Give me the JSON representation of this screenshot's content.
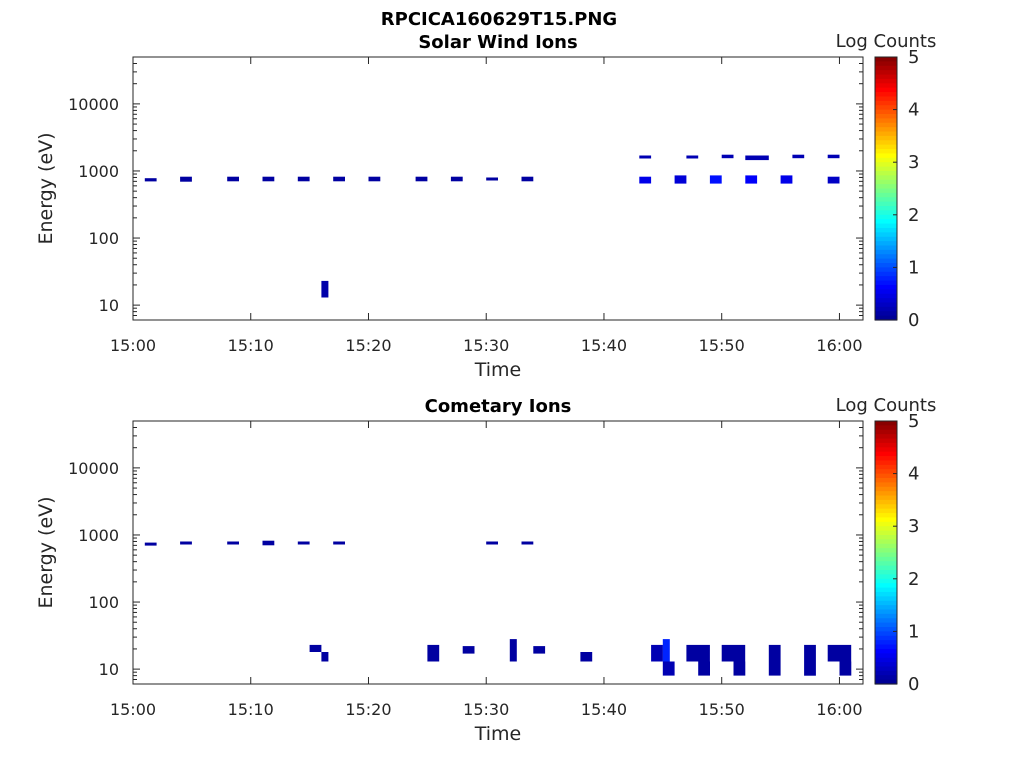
{
  "figure_title": "RPCICA160629T15.PNG",
  "colormap": [
    "#00008f",
    "#0000ff",
    "#0080ff",
    "#00ffff",
    "#80ff80",
    "#ffff00",
    "#ff8000",
    "#ff0000",
    "#800000"
  ],
  "chart_data": [
    {
      "type": "heatmap",
      "title": "Solar Wind Ions",
      "xlabel": "Time",
      "ylabel": "Energy (eV)",
      "xlim": [
        "15:00",
        "16:02"
      ],
      "ylim": [
        6,
        50000
      ],
      "yscale": "log",
      "xticks": [
        "15:00",
        "15:10",
        "15:20",
        "15:30",
        "15:40",
        "15:50",
        "16:00"
      ],
      "yticks": [
        10,
        100,
        1000,
        10000
      ],
      "colorbar": {
        "label": "Log Counts",
        "range": [
          0,
          5
        ],
        "ticks": [
          0,
          1,
          2,
          3,
          4,
          5
        ]
      },
      "cells": [
        {
          "t0": "15:01",
          "t1": "15:02",
          "e0": 700,
          "e1": 780,
          "v": 0.1
        },
        {
          "t0": "15:04",
          "t1": "15:05",
          "e0": 690,
          "e1": 820,
          "v": 0.1
        },
        {
          "t0": "15:08",
          "t1": "15:09",
          "e0": 700,
          "e1": 820,
          "v": 0.1
        },
        {
          "t0": "15:11",
          "t1": "15:12",
          "e0": 700,
          "e1": 820,
          "v": 0.1
        },
        {
          "t0": "15:14",
          "t1": "15:15",
          "e0": 700,
          "e1": 820,
          "v": 0.1
        },
        {
          "t0": "15:16",
          "t1": "15:16",
          "e0": 13,
          "e1": 23,
          "v": 0.15
        },
        {
          "t0": "15:17",
          "t1": "15:18",
          "e0": 700,
          "e1": 820,
          "v": 0.1
        },
        {
          "t0": "15:20",
          "t1": "15:21",
          "e0": 700,
          "e1": 820,
          "v": 0.1
        },
        {
          "t0": "15:24",
          "t1": "15:25",
          "e0": 700,
          "e1": 820,
          "v": 0.1
        },
        {
          "t0": "15:27",
          "t1": "15:28",
          "e0": 700,
          "e1": 820,
          "v": 0.1
        },
        {
          "t0": "15:30",
          "t1": "15:31",
          "e0": 760,
          "e1": 800,
          "v": 0.1
        },
        {
          "t0": "15:33",
          "t1": "15:34",
          "e0": 700,
          "e1": 820,
          "v": 0.1
        },
        {
          "t0": "15:43",
          "t1": "15:44",
          "e0": 1550,
          "e1": 1700,
          "v": 0.2
        },
        {
          "t0": "15:43",
          "t1": "15:44",
          "e0": 650,
          "e1": 820,
          "v": 0.5
        },
        {
          "t0": "15:46",
          "t1": "15:47",
          "e0": 650,
          "e1": 860,
          "v": 0.4
        },
        {
          "t0": "15:47",
          "t1": "15:48",
          "e0": 1550,
          "e1": 1700,
          "v": 0.2
        },
        {
          "t0": "15:49",
          "t1": "15:50",
          "e0": 650,
          "e1": 860,
          "v": 0.7
        },
        {
          "t0": "15:50",
          "t1": "15:51",
          "e0": 1550,
          "e1": 1750,
          "v": 0.2
        },
        {
          "t0": "15:52",
          "t1": "15:54",
          "e0": 1450,
          "e1": 1700,
          "v": 0.2
        },
        {
          "t0": "15:52",
          "t1": "15:53",
          "e0": 650,
          "e1": 860,
          "v": 0.6
        },
        {
          "t0": "15:55",
          "t1": "15:56",
          "e0": 650,
          "e1": 860,
          "v": 0.5
        },
        {
          "t0": "15:56",
          "t1": "15:57",
          "e0": 1550,
          "e1": 1750,
          "v": 0.2
        },
        {
          "t0": "15:59",
          "t1": "16:00",
          "e0": 650,
          "e1": 820,
          "v": 0.3
        },
        {
          "t0": "15:59",
          "t1": "16:00",
          "e0": 1550,
          "e1": 1750,
          "v": 0.2
        }
      ]
    },
    {
      "type": "heatmap",
      "title": "Cometary Ions",
      "xlabel": "Time",
      "ylabel": "Energy (eV)",
      "xlim": [
        "15:00",
        "16:02"
      ],
      "ylim": [
        6,
        50000
      ],
      "yscale": "log",
      "xticks": [
        "15:00",
        "15:10",
        "15:20",
        "15:30",
        "15:40",
        "15:50",
        "16:00"
      ],
      "yticks": [
        10,
        100,
        1000,
        10000
      ],
      "colorbar": {
        "label": "Log Counts",
        "range": [
          0,
          5
        ],
        "ticks": [
          0,
          1,
          2,
          3,
          4,
          5
        ]
      },
      "cells": [
        {
          "t0": "15:01",
          "t1": "15:02",
          "e0": 710,
          "e1": 770,
          "v": 0.1
        },
        {
          "t0": "15:04",
          "t1": "15:05",
          "e0": 750,
          "e1": 800,
          "v": 0.1
        },
        {
          "t0": "15:08",
          "t1": "15:09",
          "e0": 750,
          "e1": 800,
          "v": 0.1
        },
        {
          "t0": "15:11",
          "t1": "15:12",
          "e0": 700,
          "e1": 820,
          "v": 0.1
        },
        {
          "t0": "15:14",
          "t1": "15:15",
          "e0": 750,
          "e1": 800,
          "v": 0.1
        },
        {
          "t0": "15:17",
          "t1": "15:18",
          "e0": 750,
          "e1": 800,
          "v": 0.1
        },
        {
          "t0": "15:30",
          "t1": "15:31",
          "e0": 750,
          "e1": 800,
          "v": 0.1
        },
        {
          "t0": "15:33",
          "t1": "15:34",
          "e0": 750,
          "e1": 800,
          "v": 0.1
        },
        {
          "t0": "15:15",
          "t1": "15:16",
          "e0": 18,
          "e1": 23,
          "v": 0.1
        },
        {
          "t0": "15:16",
          "t1": "15:16",
          "e0": 13,
          "e1": 18,
          "v": 0.1
        },
        {
          "t0": "15:25",
          "t1": "15:26",
          "e0": 18,
          "e1": 23,
          "v": 0.1
        },
        {
          "t0": "15:25",
          "t1": "15:26",
          "e0": 13,
          "e1": 18,
          "v": 0.1
        },
        {
          "t0": "15:28",
          "t1": "15:29",
          "e0": 17,
          "e1": 22,
          "v": 0.1
        },
        {
          "t0": "15:32",
          "t1": "15:32",
          "e0": 13,
          "e1": 28,
          "v": 0.1
        },
        {
          "t0": "15:34",
          "t1": "15:35",
          "e0": 17,
          "e1": 22,
          "v": 0.1
        },
        {
          "t0": "15:38",
          "t1": "15:39",
          "e0": 13,
          "e1": 18,
          "v": 0.1
        },
        {
          "t0": "15:44",
          "t1": "15:45",
          "e0": 13,
          "e1": 23,
          "v": 0.2
        },
        {
          "t0": "15:45",
          "t1": "15:45",
          "e0": 13,
          "e1": 28,
          "v": 0.8
        },
        {
          "t0": "15:45",
          "t1": "15:46",
          "e0": 8,
          "e1": 13,
          "v": 0.2
        },
        {
          "t0": "15:47",
          "t1": "15:49",
          "e0": 13,
          "e1": 23,
          "v": 0.1
        },
        {
          "t0": "15:48",
          "t1": "15:49",
          "e0": 8,
          "e1": 13,
          "v": 0.1
        },
        {
          "t0": "15:50",
          "t1": "15:52",
          "e0": 13,
          "e1": 23,
          "v": 0.1
        },
        {
          "t0": "15:51",
          "t1": "15:52",
          "e0": 8,
          "e1": 13,
          "v": 0.1
        },
        {
          "t0": "15:54",
          "t1": "15:55",
          "e0": 13,
          "e1": 23,
          "v": 0.1
        },
        {
          "t0": "15:54",
          "t1": "15:55",
          "e0": 8,
          "e1": 13,
          "v": 0.1
        },
        {
          "t0": "15:57",
          "t1": "15:58",
          "e0": 8,
          "e1": 23,
          "v": 0.1
        },
        {
          "t0": "15:59",
          "t1": "16:01",
          "e0": 13,
          "e1": 23,
          "v": 0.1
        },
        {
          "t0": "16:00",
          "t1": "16:01",
          "e0": 8,
          "e1": 13,
          "v": 0.1
        }
      ]
    }
  ]
}
